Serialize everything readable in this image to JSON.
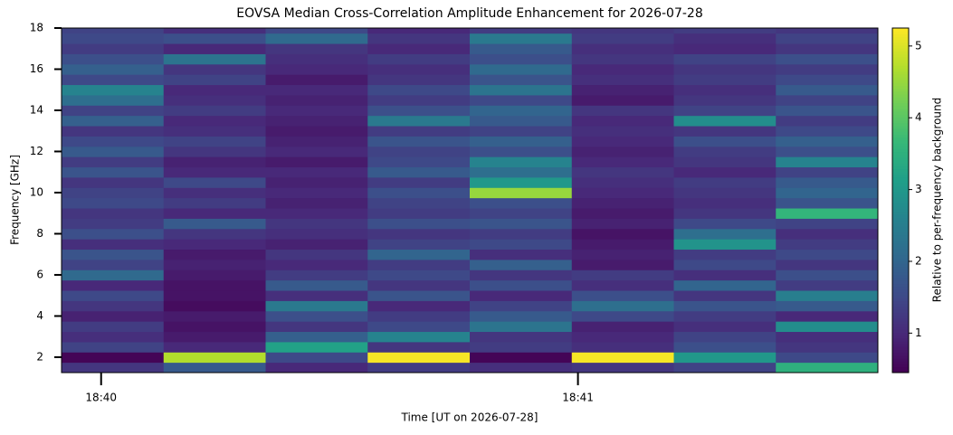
{
  "chart_data": {
    "type": "heatmap",
    "title": "EOVSA Median Cross-Correlation Amplitude Enhancement for 2026-07-28",
    "xlabel": "Time [UT on 2026-07-28]",
    "ylabel": "Frequency [GHz]",
    "colorbar_label": "Relative to per-frequency background",
    "colormap": "viridis",
    "clim": [
      0.45,
      5.25
    ],
    "colorbar_ticks": [
      1,
      2,
      3,
      4,
      5
    ],
    "xlim": [
      39.917,
      41.629
    ],
    "xticks": [
      {
        "value": 40,
        "label": "18:40"
      },
      {
        "value": 41,
        "label": "18:41"
      }
    ],
    "ylim": [
      1.25,
      18.0
    ],
    "yticks": [
      2,
      4,
      6,
      8,
      10,
      12,
      14,
      16,
      18
    ],
    "x_bins": [
      39.917,
      40.131,
      40.345,
      40.559,
      40.773,
      40.987,
      41.201,
      41.415,
      41.629
    ],
    "y_bins": [
      1.25,
      1.75,
      2.25,
      2.75,
      3.25,
      3.75,
      4.25,
      4.75,
      5.25,
      5.75,
      6.25,
      6.75,
      7.25,
      7.75,
      8.25,
      8.75,
      9.25,
      9.75,
      10.25,
      10.75,
      11.25,
      11.75,
      12.25,
      12.75,
      13.25,
      13.75,
      14.25,
      14.75,
      15.25,
      15.75,
      16.25,
      16.75,
      17.25,
      17.75,
      18.0
    ],
    "values": [
      [
        1.2,
        1.8,
        1.0,
        1.3,
        1.1,
        1.2,
        1.4,
        3.5
      ],
      [
        0.5,
        4.7,
        1.5,
        5.2,
        0.5,
        5.2,
        3.0,
        1.5
      ],
      [
        1.4,
        1.0,
        3.2,
        1.2,
        1.3,
        1.1,
        1.6,
        1.2
      ],
      [
        1.1,
        0.8,
        1.9,
        2.6,
        1.2,
        1.0,
        1.4,
        1.1
      ],
      [
        1.3,
        0.7,
        1.2,
        1.5,
        2.3,
        0.9,
        1.1,
        2.8
      ],
      [
        0.9,
        0.8,
        1.6,
        1.3,
        1.8,
        1.5,
        1.3,
        1.0
      ],
      [
        1.2,
        0.6,
        2.4,
        1.0,
        1.4,
        2.2,
        1.7,
        1.8
      ],
      [
        1.5,
        0.7,
        1.1,
        1.7,
        1.0,
        1.6,
        1.2,
        2.5
      ],
      [
        1.0,
        0.7,
        1.8,
        1.2,
        1.6,
        1.1,
        2.0,
        1.3
      ],
      [
        2.1,
        0.8,
        1.3,
        1.5,
        1.2,
        1.3,
        1.1,
        1.6
      ],
      [
        1.4,
        0.9,
        1.0,
        1.3,
        1.9,
        0.8,
        1.5,
        1.2
      ],
      [
        1.7,
        0.8,
        1.2,
        2.0,
        1.1,
        0.9,
        1.3,
        1.5
      ],
      [
        1.1,
        1.0,
        0.9,
        1.4,
        1.5,
        0.8,
        2.9,
        1.3
      ],
      [
        1.6,
        1.2,
        1.1,
        1.2,
        1.3,
        0.7,
        2.2,
        1.1
      ],
      [
        1.3,
        1.8,
        1.2,
        1.6,
        1.7,
        0.9,
        1.5,
        1.4
      ],
      [
        1.2,
        1.0,
        1.0,
        1.3,
        1.4,
        0.8,
        1.2,
        3.6
      ],
      [
        1.5,
        1.3,
        0.9,
        1.4,
        1.6,
        0.9,
        1.1,
        1.7
      ],
      [
        1.4,
        1.1,
        1.0,
        1.6,
        4.5,
        1.0,
        1.2,
        2.0
      ],
      [
        1.2,
        1.5,
        0.9,
        1.3,
        3.0,
        1.1,
        1.3,
        1.8
      ],
      [
        1.7,
        1.0,
        1.0,
        1.8,
        2.2,
        1.2,
        1.0,
        1.4
      ],
      [
        1.3,
        0.9,
        0.8,
        1.5,
        2.6,
        1.0,
        1.2,
        2.6
      ],
      [
        1.8,
        1.2,
        1.0,
        1.4,
        1.6,
        0.9,
        1.3,
        1.6
      ],
      [
        1.5,
        1.4,
        0.9,
        1.7,
        1.9,
        1.0,
        1.6,
        1.9
      ],
      [
        1.2,
        1.1,
        0.8,
        1.3,
        1.4,
        1.1,
        1.2,
        1.5
      ],
      [
        1.9,
        1.0,
        0.9,
        2.4,
        1.8,
        1.0,
        2.8,
        1.3
      ],
      [
        1.4,
        1.3,
        1.0,
        1.6,
        2.0,
        1.2,
        1.4,
        1.7
      ],
      [
        2.2,
        1.1,
        0.9,
        1.3,
        1.5,
        0.8,
        1.2,
        1.4
      ],
      [
        2.6,
        1.0,
        1.0,
        1.5,
        2.3,
        0.9,
        1.1,
        1.8
      ],
      [
        1.5,
        1.4,
        0.8,
        1.2,
        1.7,
        1.1,
        1.3,
        1.5
      ],
      [
        1.9,
        1.2,
        1.0,
        1.1,
        2.1,
        1.0,
        1.2,
        1.3
      ],
      [
        1.6,
        2.3,
        1.1,
        1.3,
        1.6,
        1.2,
        1.4,
        1.6
      ],
      [
        1.3,
        1.0,
        1.2,
        1.0,
        1.8,
        1.1,
        1.0,
        1.2
      ],
      [
        1.5,
        1.6,
        2.1,
        1.2,
        2.4,
        1.3,
        1.1,
        1.4
      ],
      [
        1.4,
        1.1,
        1.5,
        1.0,
        1.3,
        1.2,
        1.3,
        1.2
      ]
    ]
  }
}
